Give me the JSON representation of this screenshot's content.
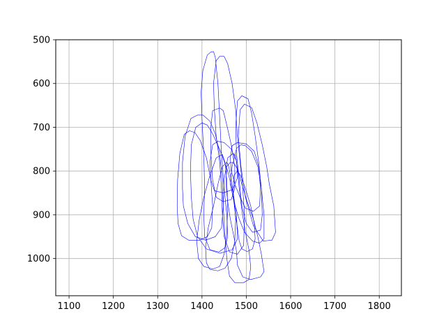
{
  "chart_data": {
    "type": "line",
    "title": "",
    "xlabel": "",
    "ylabel": "",
    "xlim": [
      1070,
      1850
    ],
    "ylim": [
      1085,
      500
    ],
    "y_inverted": true,
    "grid": true,
    "x_ticks": [
      1100,
      1200,
      1300,
      1400,
      1500,
      1600,
      1700,
      1800
    ],
    "y_ticks": [
      500,
      600,
      700,
      800,
      900,
      1000
    ],
    "x_tick_labels": [
      "1100",
      "1200",
      "1300",
      "1400",
      "1500",
      "1600",
      "1700",
      "1800"
    ],
    "y_tick_labels": [
      "500",
      "600",
      "700",
      "800",
      "900",
      "1000"
    ],
    "line_color": "#0000ff",
    "series": [
      {
        "closed": true,
        "points": [
          [
            1420,
            528
          ],
          [
            1412,
            535
          ],
          [
            1402,
            570
          ],
          [
            1398,
            620
          ],
          [
            1400,
            680
          ],
          [
            1404,
            760
          ],
          [
            1406,
            840
          ],
          [
            1404,
            900
          ],
          [
            1406,
            950
          ],
          [
            1418,
            980
          ],
          [
            1438,
            985
          ],
          [
            1452,
            975
          ],
          [
            1458,
            950
          ],
          [
            1456,
            900
          ],
          [
            1450,
            840
          ],
          [
            1444,
            760
          ],
          [
            1440,
            680
          ],
          [
            1436,
            600
          ],
          [
            1430,
            540
          ],
          [
            1426,
            527
          ]
        ]
      },
      {
        "closed": true,
        "points": [
          [
            1440,
            538
          ],
          [
            1432,
            548
          ],
          [
            1426,
            600
          ],
          [
            1428,
            660
          ],
          [
            1432,
            720
          ],
          [
            1440,
            780
          ],
          [
            1444,
            840
          ],
          [
            1446,
            900
          ],
          [
            1450,
            950
          ],
          [
            1462,
            985
          ],
          [
            1480,
            990
          ],
          [
            1494,
            970
          ],
          [
            1496,
            900
          ],
          [
            1492,
            840
          ],
          [
            1486,
            780
          ],
          [
            1480,
            720
          ],
          [
            1476,
            660
          ],
          [
            1468,
            600
          ],
          [
            1458,
            555
          ],
          [
            1450,
            538
          ]
        ]
      },
      {
        "closed": true,
        "points": [
          [
            1490,
            628
          ],
          [
            1480,
            640
          ],
          [
            1476,
            700
          ],
          [
            1478,
            760
          ],
          [
            1484,
            820
          ],
          [
            1490,
            880
          ],
          [
            1500,
            920
          ],
          [
            1514,
            940
          ],
          [
            1532,
            935
          ],
          [
            1536,
            900
          ],
          [
            1534,
            840
          ],
          [
            1528,
            780
          ],
          [
            1520,
            720
          ],
          [
            1512,
            668
          ],
          [
            1504,
            635
          ]
        ]
      },
      {
        "closed": true,
        "points": [
          [
            1496,
            647
          ],
          [
            1486,
            660
          ],
          [
            1482,
            720
          ],
          [
            1488,
            790
          ],
          [
            1498,
            860
          ],
          [
            1516,
            925
          ],
          [
            1538,
            960
          ],
          [
            1558,
            958
          ],
          [
            1566,
            940
          ],
          [
            1562,
            880
          ],
          [
            1552,
            830
          ],
          [
            1546,
            790
          ],
          [
            1536,
            740
          ],
          [
            1524,
            690
          ],
          [
            1512,
            655
          ]
        ]
      },
      {
        "closed": true,
        "points": [
          [
            1390,
            672
          ],
          [
            1375,
            680
          ],
          [
            1362,
            720
          ],
          [
            1356,
            780
          ],
          [
            1356,
            840
          ],
          [
            1358,
            880
          ],
          [
            1368,
            920
          ],
          [
            1385,
            950
          ],
          [
            1408,
            958
          ],
          [
            1430,
            950
          ],
          [
            1444,
            930
          ],
          [
            1448,
            880
          ],
          [
            1446,
            820
          ],
          [
            1440,
            760
          ],
          [
            1430,
            715
          ],
          [
            1418,
            686
          ],
          [
            1402,
            672
          ]
        ]
      },
      {
        "closed": true,
        "points": [
          [
            1400,
            690
          ],
          [
            1386,
            700
          ],
          [
            1376,
            740
          ],
          [
            1374,
            800
          ],
          [
            1376,
            860
          ],
          [
            1380,
            910
          ],
          [
            1390,
            950
          ],
          [
            1410,
            978
          ],
          [
            1440,
            988
          ],
          [
            1468,
            980
          ],
          [
            1480,
            955
          ],
          [
            1478,
            900
          ],
          [
            1470,
            850
          ],
          [
            1458,
            800
          ],
          [
            1442,
            755
          ],
          [
            1424,
            715
          ],
          [
            1412,
            695
          ]
        ]
      },
      {
        "closed": true,
        "points": [
          [
            1372,
            708
          ],
          [
            1360,
            716
          ],
          [
            1350,
            760
          ],
          [
            1345,
            820
          ],
          [
            1344,
            880
          ],
          [
            1346,
            920
          ],
          [
            1354,
            948
          ],
          [
            1370,
            958
          ],
          [
            1394,
            958
          ],
          [
            1412,
            950
          ],
          [
            1422,
            930
          ],
          [
            1424,
            880
          ],
          [
            1420,
            820
          ],
          [
            1410,
            770
          ],
          [
            1396,
            730
          ],
          [
            1384,
            712
          ]
        ]
      },
      {
        "closed": true,
        "points": [
          [
            1436,
            732
          ],
          [
            1424,
            740
          ],
          [
            1418,
            780
          ],
          [
            1420,
            820
          ],
          [
            1428,
            845
          ],
          [
            1448,
            850
          ],
          [
            1470,
            842
          ],
          [
            1480,
            815
          ],
          [
            1478,
            778
          ],
          [
            1466,
            750
          ],
          [
            1450,
            735
          ]
        ]
      },
      {
        "closed": true,
        "points": [
          [
            1480,
            735
          ],
          [
            1468,
            742
          ],
          [
            1464,
            770
          ],
          [
            1466,
            800
          ],
          [
            1474,
            830
          ],
          [
            1486,
            860
          ],
          [
            1498,
            885
          ],
          [
            1516,
            892
          ],
          [
            1530,
            880
          ],
          [
            1532,
            840
          ],
          [
            1528,
            790
          ],
          [
            1518,
            755
          ],
          [
            1500,
            738
          ]
        ]
      },
      {
        "closed": true,
        "points": [
          [
            1440,
            656
          ],
          [
            1424,
            662
          ],
          [
            1420,
            700
          ],
          [
            1420,
            760
          ],
          [
            1424,
            820
          ],
          [
            1432,
            860
          ],
          [
            1448,
            870
          ],
          [
            1466,
            865
          ],
          [
            1474,
            840
          ],
          [
            1474,
            790
          ],
          [
            1466,
            740
          ],
          [
            1456,
            695
          ],
          [
            1448,
            662
          ]
        ]
      },
      {
        "closed": true,
        "points": [
          [
            1488,
            740
          ],
          [
            1478,
            748
          ],
          [
            1468,
            790
          ],
          [
            1464,
            830
          ],
          [
            1472,
            870
          ],
          [
            1484,
            910
          ],
          [
            1496,
            940
          ],
          [
            1514,
            960
          ],
          [
            1530,
            965
          ],
          [
            1540,
            955
          ],
          [
            1540,
            900
          ],
          [
            1534,
            840
          ],
          [
            1526,
            790
          ],
          [
            1512,
            755
          ],
          [
            1498,
            742
          ]
        ]
      },
      {
        "closed": true,
        "points": [
          [
            1464,
            780
          ],
          [
            1456,
            790
          ],
          [
            1454,
            830
          ],
          [
            1458,
            870
          ],
          [
            1464,
            910
          ],
          [
            1472,
            950
          ],
          [
            1478,
            985
          ],
          [
            1480,
            1015
          ],
          [
            1492,
            1042
          ],
          [
            1510,
            1048
          ],
          [
            1532,
            1042
          ],
          [
            1540,
            1030
          ],
          [
            1534,
            990
          ],
          [
            1526,
            950
          ],
          [
            1516,
            910
          ],
          [
            1502,
            870
          ],
          [
            1490,
            830
          ],
          [
            1480,
            795
          ],
          [
            1472,
            782
          ]
        ]
      },
      {
        "closed": true,
        "points": [
          [
            1470,
            760
          ],
          [
            1458,
            770
          ],
          [
            1450,
            820
          ],
          [
            1448,
            880
          ],
          [
            1452,
            950
          ],
          [
            1456,
            1000
          ],
          [
            1462,
            1040
          ],
          [
            1474,
            1055
          ],
          [
            1494,
            1055
          ],
          [
            1506,
            1048
          ],
          [
            1510,
            1020
          ],
          [
            1506,
            980
          ],
          [
            1498,
            940
          ],
          [
            1490,
            890
          ],
          [
            1484,
            840
          ],
          [
            1480,
            795
          ],
          [
            1476,
            765
          ]
        ]
      },
      {
        "closed": true,
        "points": [
          [
            1456,
            780
          ],
          [
            1446,
            790
          ],
          [
            1436,
            830
          ],
          [
            1426,
            880
          ],
          [
            1414,
            930
          ],
          [
            1408,
            975
          ],
          [
            1410,
            1010
          ],
          [
            1418,
            1025
          ],
          [
            1436,
            1028
          ],
          [
            1452,
            1022
          ],
          [
            1466,
            1000
          ],
          [
            1474,
            960
          ],
          [
            1476,
            910
          ],
          [
            1472,
            860
          ],
          [
            1466,
            820
          ],
          [
            1460,
            788
          ]
        ]
      },
      {
        "closed": true,
        "points": [
          [
            1446,
            762
          ],
          [
            1432,
            770
          ],
          [
            1418,
            810
          ],
          [
            1404,
            860
          ],
          [
            1394,
            910
          ],
          [
            1388,
            960
          ],
          [
            1392,
            1000
          ],
          [
            1404,
            1018
          ],
          [
            1424,
            1024
          ],
          [
            1440,
            1018
          ],
          [
            1450,
            990
          ],
          [
            1456,
            940
          ],
          [
            1458,
            880
          ],
          [
            1456,
            820
          ],
          [
            1452,
            780
          ]
        ]
      },
      {
        "closed": true,
        "points": [
          [
            1480,
            800
          ],
          [
            1472,
            810
          ],
          [
            1470,
            850
          ],
          [
            1474,
            890
          ],
          [
            1480,
            930
          ],
          [
            1484,
            960
          ],
          [
            1490,
            978
          ],
          [
            1502,
            984
          ],
          [
            1514,
            978
          ],
          [
            1520,
            955
          ],
          [
            1518,
            920
          ],
          [
            1510,
            880
          ],
          [
            1498,
            840
          ],
          [
            1488,
            812
          ]
        ]
      }
    ]
  }
}
